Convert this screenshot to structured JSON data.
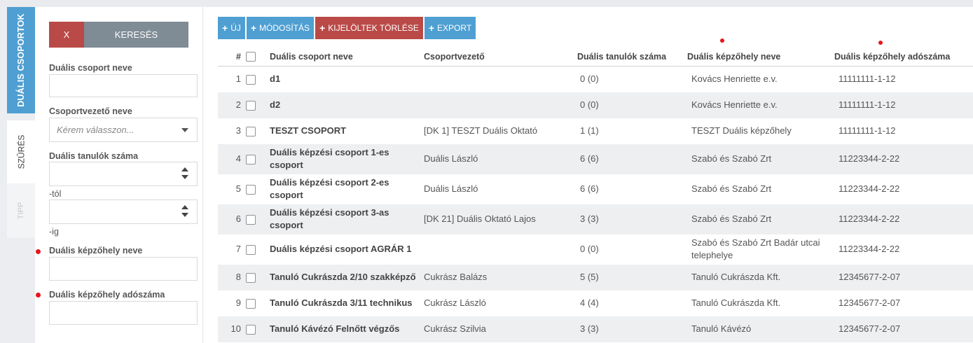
{
  "sidebar_tabs": {
    "groups": "DUÁLIS CSOPORTOK",
    "filter": "SZŰRÉS",
    "tip": "TIPP"
  },
  "filter": {
    "clear_label": "X",
    "search_label": "KERESÉS",
    "group_name_label": "Duális csoport neve",
    "leader_label": "Csoportvezető neve",
    "leader_placeholder": "Kérem válasszon...",
    "students_label": "Duális tanulók száma",
    "from_label": "-tól",
    "to_label": "-ig",
    "site_name_label": "Duális képzőhely neve",
    "site_tax_label": "Duális képzőhely adószáma"
  },
  "toolbar": {
    "new_label": "ÚJ",
    "edit_label": "MÓDOSÍTÁS",
    "delete_label": "KIJELÖLTEK TÖRLÉSE",
    "export_label": "EXPORT"
  },
  "table": {
    "headers": {
      "index": "#",
      "name": "Duális csoport neve",
      "leader": "Csoportvezető",
      "students": "Duális tanulók száma",
      "site": "Duális képzőhely neve",
      "tax": "Duális képzőhely adószáma"
    },
    "rows": [
      {
        "index": "1",
        "name": "d1",
        "leader": "",
        "students": "0 (0)",
        "site": "Kovács Henriette e.v.",
        "tax": "11111111-1-12"
      },
      {
        "index": "2",
        "name": "d2",
        "leader": "",
        "students": "0 (0)",
        "site": "Kovács Henriette e.v.",
        "tax": "11111111-1-12"
      },
      {
        "index": "3",
        "name": "TESZT CSOPORT",
        "leader": "[DK 1] TESZT Duális Oktató",
        "students": "1 (1)",
        "site": "TESZT Duális képzőhely",
        "tax": "11111111-1-12"
      },
      {
        "index": "4",
        "name": "Duális képzési csoport 1-es csoport",
        "leader": "Duális László",
        "students": "6 (6)",
        "site": "Szabó és Szabó Zrt",
        "tax": "11223344-2-22"
      },
      {
        "index": "5",
        "name": "Duális képzési csoport 2-es csoport",
        "leader": "Duális László",
        "students": "6 (6)",
        "site": "Szabó és Szabó Zrt",
        "tax": "11223344-2-22"
      },
      {
        "index": "6",
        "name": "Duális képzési csoport 3-as csoport",
        "leader": "[DK 21] Duális Oktató Lajos",
        "students": "3 (3)",
        "site": "Szabó és Szabó Zrt",
        "tax": "11223344-2-22"
      },
      {
        "index": "7",
        "name": "Duális képzési csoport AGRÁR 1",
        "leader": "",
        "students": "0 (0)",
        "site": "Szabó és Szabó Zrt Badár utcai telephelye",
        "tax": "11223344-2-22"
      },
      {
        "index": "8",
        "name": "Tanuló Cukrászda 2/10 szakképző",
        "leader": "Cukrász Balázs",
        "students": "5 (5)",
        "site": "Tanuló Cukrászda Kft.",
        "tax": "12345677-2-07"
      },
      {
        "index": "9",
        "name": "Tanuló Cukrászda 3/11 technikus",
        "leader": "Cukrász László",
        "students": "4 (4)",
        "site": "Tanuló Cukrászda Kft.",
        "tax": "12345677-2-07"
      },
      {
        "index": "10",
        "name": "Tanuló Kávézó Felnőtt végzős",
        "leader": "Cukrász Szilvia",
        "students": "3 (3)",
        "site": "Tanuló Kávézó",
        "tax": "12345677-2-07"
      }
    ]
  },
  "colors": {
    "primary": "#4f9fd2",
    "danger": "#b94a48",
    "search_button": "#7f8b95",
    "marker": "#e8161b"
  }
}
